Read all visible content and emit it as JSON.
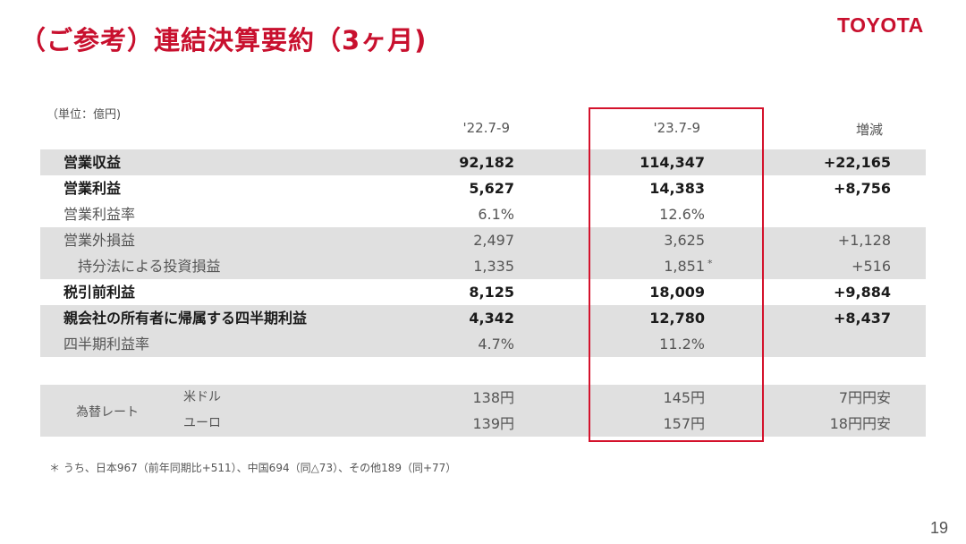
{
  "header": {
    "title": "（ご参考）連結決算要約（3ヶ月)",
    "logo_text": "TOYOTA"
  },
  "table": {
    "unit_label": "（単位：億円)",
    "columns": [
      "'22.7-9",
      "'23.7-9",
      "増減"
    ],
    "rows": [
      {
        "label": "営業収益",
        "v1": "92,182",
        "v2": "114,347",
        "v3": "+22,165"
      },
      {
        "label": "営業利益",
        "v1": "5,627",
        "v2": "14,383",
        "v3": "+8,756"
      },
      {
        "label": "営業利益率",
        "v1": "6.1%",
        "v2": "12.6%",
        "v3": ""
      },
      {
        "label": "営業外損益",
        "v1": "2,497",
        "v2": "3,625",
        "v3": "+1,128"
      },
      {
        "label": "持分法による投資損益",
        "v1": "1,335",
        "v2": "1,851",
        "v3": "+516"
      },
      {
        "label": "税引前利益",
        "v1": "8,125",
        "v2": "18,009",
        "v3": "+9,884"
      },
      {
        "label": "親会社の所有者に帰属する四半期利益",
        "v1": "4,342",
        "v2": "12,780",
        "v3": "+8,437"
      },
      {
        "label": "四半期利益率",
        "v1": "4.7%",
        "v2": "11.2%",
        "v3": ""
      }
    ],
    "asterisk_mark": "*",
    "fx": {
      "category": "為替レート",
      "rows": [
        {
          "label": "米ドル",
          "v1": "138円",
          "v2": "145円",
          "v3": "7円円安"
        },
        {
          "label": "ユーロ",
          "v1": "139円",
          "v2": "157円",
          "v3": "18円円安"
        }
      ]
    }
  },
  "footnote": "＊ うち、日本967（前年同期比+511）、中国694（同△73）、その他189（同+77）",
  "page_number": "19",
  "colors": {
    "accent_red": "#c8102e",
    "row_shade": "#e0e0e0",
    "highlight_box": "#d4122c"
  }
}
